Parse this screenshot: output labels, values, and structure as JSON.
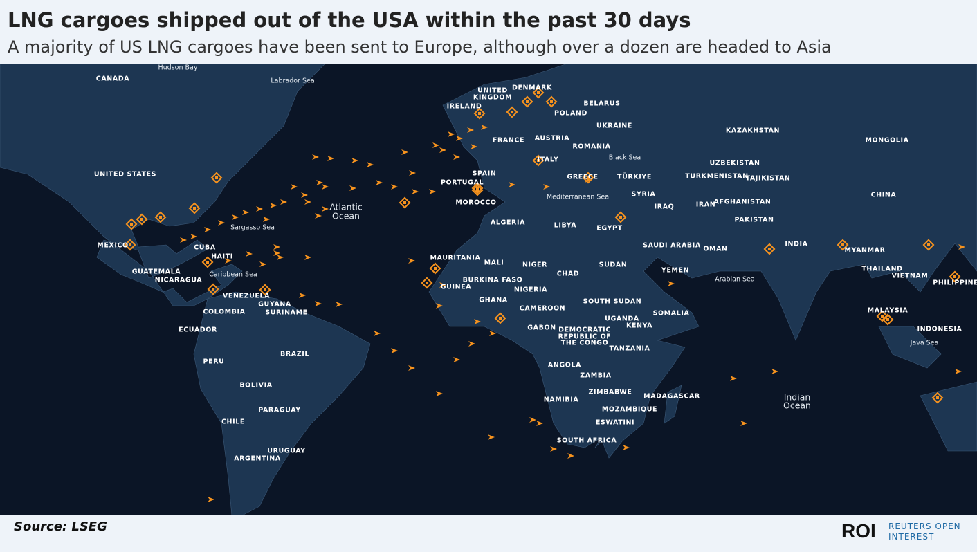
{
  "header": {
    "title": "LNG cargoes shipped out of the USA within the past 30 days",
    "subtitle": "A majority of US LNG cargoes have been sent to Europe, although over a dozen are headed to Asia"
  },
  "map": {
    "countries": [
      "CANADA",
      "UNITED STATES",
      "MEXICO",
      "CUBA",
      "HAITI",
      "GUATEMALA",
      "NICARAGUA",
      "VENEZUELA",
      "GUYANA",
      "SURINAME",
      "COLOMBIA",
      "ECUADOR",
      "PERU",
      "BRAZIL",
      "BOLIVIA",
      "PARAGUAY",
      "CHILE",
      "URUGUAY",
      "ARGENTINA",
      "UNITED",
      "KINGDOM",
      "DENMARK",
      "IRELAND",
      "BELARUS",
      "POLAND",
      "UKRAINE",
      "FRANCE",
      "AUSTRIA",
      "ROMANIA",
      "ITALY",
      "SPAIN",
      "PORTUGAL",
      "GREECE",
      "TÜRKIYE",
      "MOROCCO",
      "SYRIA",
      "IRAQ",
      "ALGERIA",
      "LIBYA",
      "EGYPT",
      "KAZAKHSTAN",
      "MONGOLIA",
      "UZBEKISTAN",
      "TURKMENISTAN",
      "TAJIKISTAN",
      "CHINA",
      "IRAN",
      "AFGHANISTAN",
      "PAKISTAN",
      "INDIA",
      "SAUDI ARABIA",
      "OMAN",
      "YEMEN",
      "MYANMAR",
      "THAILAND",
      "VIETNAM",
      "PHILIPPINES",
      "MALAYSIA",
      "INDONESIA",
      "MAURITANIA",
      "MALI",
      "NIGER",
      "CHAD",
      "SUDAN",
      "BURKINA FASO",
      "NIGERIA",
      "GUINEA",
      "GHANA",
      "CAMEROON",
      "SOUTH SUDAN",
      "SOMALIA",
      "UGANDA",
      "KENYA",
      "GABON",
      "DEMOCRATIC",
      "REPUBLIC OF",
      "THE CONGO",
      "TANZANIA",
      "ANGOLA",
      "ZAMBIA",
      "ZIMBABWE",
      "MADAGASCAR",
      "NAMIBIA",
      "MOZAMBIQUE",
      "ESWATINI",
      "SOUTH AFRICA"
    ],
    "seas": [
      "Hudson Bay",
      "Labrador Sea",
      "Sargasso Sea",
      "Caribbean Sea",
      "Black Sea",
      "Mediterranean Sea",
      "Arabian Sea",
      "Java Sea",
      "Atlantic",
      "Ocean",
      "Indian",
      "Ocean"
    ]
  },
  "footer": {
    "source": "Source: LSEG",
    "logo": "ROI",
    "logo_text_1": "REUTERS OPEN",
    "logo_text_2": "INTEREST"
  }
}
